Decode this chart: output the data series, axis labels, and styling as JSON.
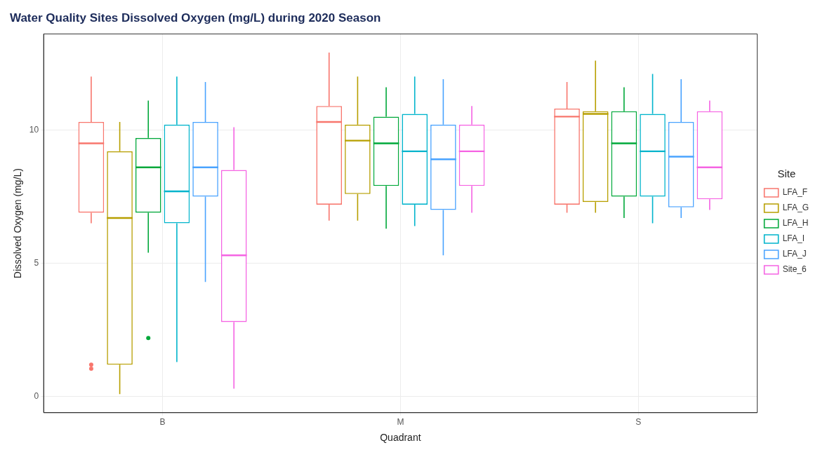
{
  "chart_data": {
    "type": "box",
    "title": "Water Quality Sites Dissolved Oxygen (mg/L) during 2020 Season",
    "xlabel": "Quadrant",
    "ylabel": "Dissolved Oxygen (mg/L)",
    "legend_title": "Site",
    "categories": [
      "B",
      "M",
      "S"
    ],
    "ylim": [
      -0.6,
      13.6
    ],
    "yticks": [
      0,
      5,
      10
    ],
    "grid": true,
    "legend": "right",
    "series": [
      {
        "name": "LFA_F",
        "color": "#f8766d",
        "boxes": [
          {
            "low": 6.5,
            "q1": 6.9,
            "median": 9.5,
            "q3": 10.3,
            "high": 12.0,
            "outliers": [
              1.2,
              1.05
            ]
          },
          {
            "low": 6.6,
            "q1": 7.2,
            "median": 10.3,
            "q3": 10.9,
            "high": 12.9
          },
          {
            "low": 6.9,
            "q1": 7.2,
            "median": 10.5,
            "q3": 10.8,
            "high": 11.8
          }
        ]
      },
      {
        "name": "LFA_G",
        "color": "#b79f00",
        "boxes": [
          {
            "low": 0.1,
            "q1": 1.2,
            "median": 6.7,
            "q3": 9.2,
            "high": 10.3
          },
          {
            "low": 6.6,
            "q1": 7.6,
            "median": 9.6,
            "q3": 10.2,
            "high": 12.0
          },
          {
            "low": 6.9,
            "q1": 7.3,
            "median": 10.6,
            "q3": 10.7,
            "high": 12.6
          }
        ]
      },
      {
        "name": "LFA_H",
        "color": "#00a83a",
        "boxes": [
          {
            "low": 5.4,
            "q1": 6.9,
            "median": 8.6,
            "q3": 9.7,
            "high": 11.1,
            "outliers": [
              2.2
            ]
          },
          {
            "low": 6.3,
            "q1": 7.9,
            "median": 9.5,
            "q3": 10.5,
            "high": 11.6
          },
          {
            "low": 6.7,
            "q1": 7.5,
            "median": 9.5,
            "q3": 10.7,
            "high": 11.6
          }
        ]
      },
      {
        "name": "LFA_I",
        "color": "#00b4cc",
        "boxes": [
          {
            "low": 1.3,
            "q1": 6.5,
            "median": 7.7,
            "q3": 10.2,
            "high": 12.0
          },
          {
            "low": 6.4,
            "q1": 7.2,
            "median": 9.2,
            "q3": 10.6,
            "high": 12.0
          },
          {
            "low": 6.5,
            "q1": 7.5,
            "median": 9.2,
            "q3": 10.6,
            "high": 12.1
          }
        ]
      },
      {
        "name": "LFA_J",
        "color": "#4aa3ff",
        "boxes": [
          {
            "low": 4.3,
            "q1": 7.5,
            "median": 8.6,
            "q3": 10.3,
            "high": 11.8
          },
          {
            "low": 5.3,
            "q1": 7.0,
            "median": 8.9,
            "q3": 10.2,
            "high": 11.9
          },
          {
            "low": 6.7,
            "q1": 7.1,
            "median": 9.0,
            "q3": 10.3,
            "high": 11.9
          }
        ]
      },
      {
        "name": "Site_6",
        "color": "#f564e3",
        "boxes": [
          {
            "low": 0.3,
            "q1": 2.8,
            "median": 5.3,
            "q3": 8.5,
            "high": 10.1
          },
          {
            "low": 6.9,
            "q1": 7.9,
            "median": 9.2,
            "q3": 10.2,
            "high": 10.9
          },
          {
            "low": 7.0,
            "q1": 7.4,
            "median": 8.6,
            "q3": 10.7,
            "high": 11.1
          }
        ]
      }
    ]
  }
}
